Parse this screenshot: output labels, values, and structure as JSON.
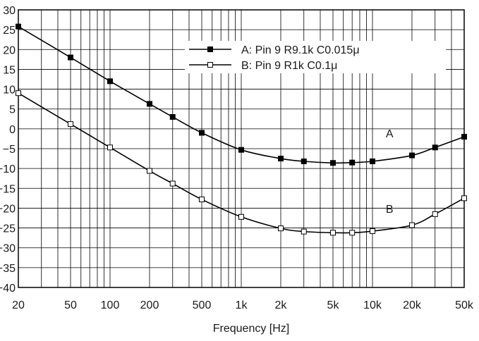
{
  "chart_data": {
    "type": "line",
    "x_scale": "log",
    "grid": true,
    "xlabel": "Frequency [Hz]",
    "ylabel": "",
    "xlim": [
      20,
      50000
    ],
    "ylim": [
      -40,
      30
    ],
    "x_ticks": [
      {
        "value": 20,
        "label": "20"
      },
      {
        "value": 50,
        "label": "50"
      },
      {
        "value": 100,
        "label": "100"
      },
      {
        "value": 200,
        "label": "200"
      },
      {
        "value": 500,
        "label": "500"
      },
      {
        "value": 1000,
        "label": "1k"
      },
      {
        "value": 2000,
        "label": "2k"
      },
      {
        "value": 5000,
        "label": "5k"
      },
      {
        "value": 10000,
        "label": "10k"
      },
      {
        "value": 20000,
        "label": "20k"
      },
      {
        "value": 50000,
        "label": "50k"
      }
    ],
    "y_ticks": [
      30,
      25,
      20,
      15,
      10,
      5,
      0,
      -5,
      -10,
      -15,
      -20,
      -25,
      -30,
      -35,
      -40
    ],
    "y_tick_labels": [
      "30",
      "25",
      "20",
      "15",
      "10",
      "5",
      "0",
      "−5",
      "−10",
      "−15",
      "−20",
      "−25",
      "−30",
      "−35",
      "−40"
    ],
    "legend_position": "top-right",
    "series": [
      {
        "name": "A: Pin 9  R9.1k C0.015μ",
        "curve_label": "A",
        "marker": "filled-square",
        "color": "#000000",
        "x": [
          20,
          50,
          100,
          200,
          300,
          500,
          1000,
          2000,
          3000,
          5000,
          7000,
          10000,
          20000,
          30000,
          50000
        ],
        "y": [
          25.8,
          18,
          12,
          6.3,
          3,
          -1,
          -5.3,
          -7.5,
          -8.2,
          -8.6,
          -8.5,
          -8.2,
          -6.7,
          -4.7,
          -2
        ]
      },
      {
        "name": "B: Pin 9  R1k C0.1μ",
        "curve_label": "B",
        "marker": "open-square",
        "color": "#000000",
        "x": [
          20,
          50,
          100,
          200,
          300,
          500,
          1000,
          2000,
          3000,
          5000,
          7000,
          10000,
          20000,
          30000,
          50000
        ],
        "y": [
          9,
          1.2,
          -4.7,
          -10.6,
          -13.8,
          -17.8,
          -22.2,
          -25.1,
          -25.9,
          -26.2,
          -26.2,
          -25.8,
          -24.3,
          -21.5,
          -17.5
        ]
      }
    ]
  }
}
